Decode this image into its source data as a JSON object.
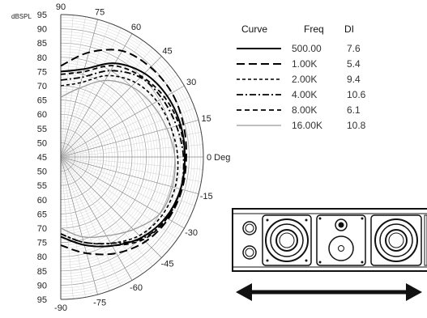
{
  "chart_data": {
    "type": "polar",
    "title": "",
    "radial_unit_label": "dBSPL",
    "angle_unit_label": "0 Deg",
    "angle_ticks": [
      "90",
      "75",
      "60",
      "45",
      "30",
      "15",
      "-15",
      "-30",
      "-45",
      "-60",
      "-75",
      "-90"
    ],
    "radial_ticks_top": [
      "95",
      "90",
      "85",
      "80",
      "75",
      "70",
      "65",
      "60",
      "55",
      "50"
    ],
    "radial_center": "45",
    "radial_ticks_bottom": [
      "50",
      "55",
      "60",
      "65",
      "70",
      "75",
      "80",
      "85",
      "90",
      "95"
    ],
    "legend": {
      "headers": [
        "Curve",
        "Freq",
        "DI"
      ],
      "rows": [
        {
          "freq": "500.00",
          "di": "7.6",
          "style": "solid"
        },
        {
          "freq": "1.00K",
          "di": "5.4",
          "style": "long-dash"
        },
        {
          "freq": "2.00K",
          "di": "9.4",
          "style": "short-dash"
        },
        {
          "freq": "4.00K",
          "di": "10.6",
          "style": "dash-dot"
        },
        {
          "freq": "8.00K",
          "di": "6.1",
          "style": "medium-dash"
        },
        {
          "freq": "16.00K",
          "di": "10.8",
          "style": "thin-gray"
        }
      ]
    },
    "series": [
      {
        "name": "500.00",
        "style": "solid",
        "angles": [
          90,
          75,
          60,
          45,
          30,
          15,
          0,
          -15,
          -30,
          -45,
          -60,
          -75,
          -90
        ],
        "values": [
          75,
          77,
          83,
          86.5,
          88,
          88.5,
          88.5,
          88.5,
          87.5,
          85,
          81,
          77,
          73
        ]
      },
      {
        "name": "1.00K",
        "style": "long-dash",
        "angles": [
          90,
          75,
          60,
          45,
          30,
          15,
          0,
          -15,
          -30,
          -45,
          -60,
          -75,
          -90
        ],
        "values": [
          77,
          83,
          88,
          89.5,
          90,
          89.5,
          89,
          89,
          88.5,
          87,
          84,
          80,
          76
        ]
      },
      {
        "name": "2.00K",
        "style": "short-dash",
        "angles": [
          90,
          75,
          60,
          45,
          30,
          15,
          0,
          -15,
          -30,
          -45,
          -60,
          -75,
          -90
        ],
        "values": [
          70,
          72,
          78,
          82,
          84,
          85,
          86,
          86.5,
          86,
          84,
          80,
          76,
          72
        ]
      },
      {
        "name": "4.00K",
        "style": "dash-dot",
        "angles": [
          90,
          75,
          60,
          45,
          30,
          15,
          0,
          -15,
          -30,
          -45,
          -60,
          -75,
          -90
        ],
        "values": [
          72,
          74,
          80,
          84.5,
          86,
          87,
          88,
          88.5,
          88,
          85.5,
          80,
          76,
          72
        ]
      },
      {
        "name": "8.00K",
        "style": "medium-dash",
        "angles": [
          90,
          75,
          60,
          45,
          30,
          15,
          0,
          -15,
          -30,
          -45,
          -60,
          -75,
          -90
        ],
        "values": [
          74,
          76,
          82,
          85,
          87,
          88,
          88.5,
          88.5,
          88,
          86,
          81,
          77,
          73
        ]
      },
      {
        "name": "16.00K",
        "style": "thin-gray",
        "angles": [
          90,
          75,
          60,
          45,
          30,
          15,
          0,
          -15,
          -30,
          -45,
          -60,
          -75,
          -90
        ],
        "values": [
          66,
          70,
          76,
          80,
          82,
          83.5,
          85,
          85.5,
          85,
          81,
          77,
          74,
          70
        ]
      }
    ],
    "rlim": [
      45,
      95
    ],
    "grid": true,
    "legend_position": "right"
  }
}
